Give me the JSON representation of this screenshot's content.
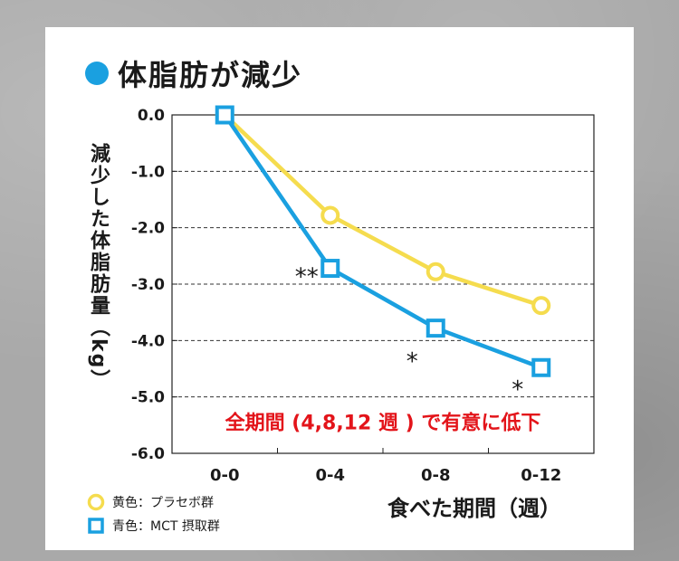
{
  "title": "体脂肪が減少",
  "xlabel": "食べた期間（週）",
  "ylabel": "減少した体脂肪量（kg）",
  "colors": {
    "yellow": "#f5dc4e",
    "blue": "#1aa0e0",
    "note": "#e3141a",
    "title_dot": "#1aa0e0"
  },
  "legend": [
    {
      "label": "黄色：プラセボ群",
      "marker": "circle",
      "color": "#f5dc4e"
    },
    {
      "label": "青色：MCT 摂取群",
      "marker": "square",
      "color": "#1aa0e0"
    }
  ],
  "chart_data": {
    "type": "line",
    "categories": [
      "0-0",
      "0-4",
      "0-8",
      "0-12"
    ],
    "y_ticks": [
      "0.0",
      "-1.0",
      "-2.0",
      "-3.0",
      "-4.0",
      "-5.0",
      "-6.0"
    ],
    "ylim": [
      -6.0,
      0.0
    ],
    "grid": "horizontal-dashed",
    "series": [
      {
        "name": "プラセボ群",
        "marker": "circle",
        "color": "#f5dc4e",
        "values": [
          0.0,
          -1.78,
          -2.78,
          -3.38
        ]
      },
      {
        "name": "MCT 摂取群",
        "marker": "square",
        "color": "#1aa0e0",
        "values": [
          0.0,
          -2.72,
          -3.78,
          -4.48
        ]
      }
    ],
    "annotations": [
      {
        "text": "**",
        "category": "0-4",
        "y": -2.75,
        "side": "left"
      },
      {
        "text": "*",
        "category": "0-8",
        "y": -4.25,
        "side": "left"
      },
      {
        "text": "*",
        "category": "0-12",
        "y": -4.75,
        "side": "left"
      }
    ],
    "note": "全期間 (4,8,12 週 ) で有意に低下"
  }
}
